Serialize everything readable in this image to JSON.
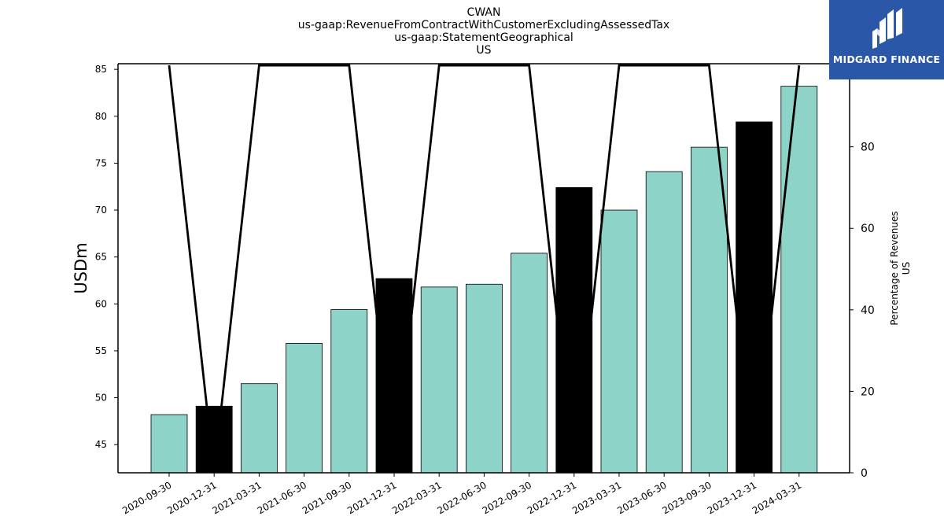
{
  "chart_data": {
    "type": "bar",
    "title_lines": [
      "CWAN",
      "us-gaap:RevenueFromContractWithCustomerExcludingAssessedTax",
      "us-gaap:StatementGeographical",
      "US"
    ],
    "categories": [
      "2020-09-30",
      "2020-12-31",
      "2021-03-31",
      "2021-06-30",
      "2021-09-30",
      "2021-12-31",
      "2022-03-31",
      "2022-06-30",
      "2022-09-30",
      "2022-12-31",
      "2023-03-31",
      "2023-06-30",
      "2023-09-30",
      "2023-12-31",
      "2024-03-31"
    ],
    "values": [
      48.2,
      49.1,
      51.5,
      55.8,
      59.4,
      62.7,
      61.8,
      62.1,
      65.4,
      72.4,
      70.0,
      74.1,
      76.7,
      79.4,
      83.2
    ],
    "bar_colors": [
      "#8dd3c7",
      "#000000",
      "#8dd3c7",
      "#8dd3c7",
      "#8dd3c7",
      "#000000",
      "#8dd3c7",
      "#8dd3c7",
      "#8dd3c7",
      "#000000",
      "#8dd3c7",
      "#8dd3c7",
      "#8dd3c7",
      "#000000",
      "#8dd3c7"
    ],
    "ylabel": "USDm",
    "ylim": [
      42,
      85.6
    ],
    "yticks": [
      45,
      50,
      55,
      60,
      65,
      70,
      75,
      80,
      85
    ],
    "y2label_lines": [
      "Percentage of Revenues",
      "US"
    ],
    "y2lim": [
      0,
      100.4
    ],
    "y2ticks": [
      0,
      20,
      40,
      60,
      80,
      100
    ],
    "line_series": {
      "values": [
        100,
        0,
        100,
        100,
        100,
        0,
        100,
        100,
        100,
        0,
        100,
        100,
        100,
        0,
        100
      ],
      "color": "#000000"
    },
    "grid": false
  },
  "logo": {
    "text": "MIDGARD FINANCE"
  }
}
